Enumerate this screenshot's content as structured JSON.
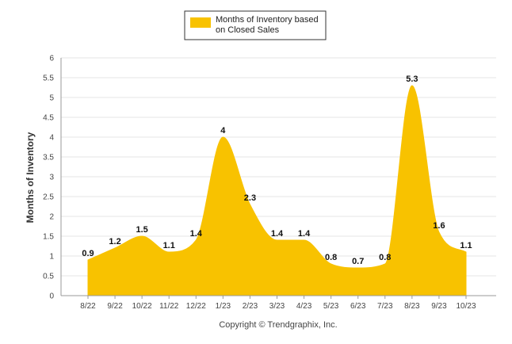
{
  "chart_data": {
    "type": "area",
    "categories": [
      "8/22",
      "9/22",
      "10/22",
      "11/22",
      "12/22",
      "1/23",
      "2/23",
      "3/23",
      "4/23",
      "5/23",
      "6/23",
      "7/23",
      "8/23",
      "9/23",
      "10/23"
    ],
    "series": [
      {
        "name": "Months of Inventory based on Closed Sales",
        "values": [
          0.9,
          1.2,
          1.5,
          1.1,
          1.4,
          4,
          2.3,
          1.4,
          1.4,
          0.8,
          0.7,
          0.8,
          5.3,
          1.6,
          1.1
        ],
        "data_labels": [
          "0.9",
          "1.2",
          "1.5",
          "1.1",
          "1.4",
          "4",
          "2.3",
          "1.4",
          "1.4",
          "0.8",
          "0.7",
          "0.8",
          "5.3",
          "1.6",
          "1.1"
        ]
      }
    ],
    "ylabel": "Months of Inventory",
    "ylim": [
      0,
      6
    ],
    "yticks": [
      "0",
      "0.5",
      "1",
      "1.5",
      "2",
      "2.5",
      "3",
      "3.5",
      "4",
      "4.5",
      "5",
      "5.5",
      "6"
    ],
    "grid": true,
    "legend_position": "top",
    "colors": {
      "fill": "#F8C200",
      "grid": "#e6e6e6",
      "axis": "#999999"
    }
  },
  "legend": {
    "line1": "Months of Inventory based",
    "line2": "on Closed Sales"
  },
  "footer": {
    "copyright": "Copyright © Trendgraphix, Inc."
  }
}
